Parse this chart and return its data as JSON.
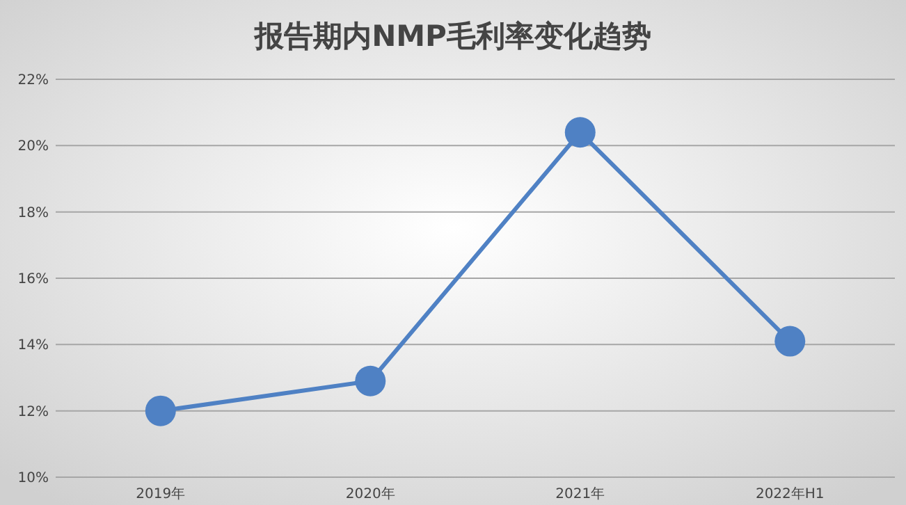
{
  "chart_data": {
    "type": "line",
    "title": "报告期内NMP毛利率变化趋势",
    "categories": [
      "2019年",
      "2020年",
      "2021年",
      "2022年H1"
    ],
    "series": [
      {
        "color": "#4f81c4",
        "values": [
          12.0,
          12.9,
          20.4,
          14.1
        ]
      }
    ],
    "ylim": [
      10,
      22
    ],
    "yticks": [
      {
        "value": 10,
        "label": "10%"
      },
      {
        "value": 12,
        "label": "12%"
      },
      {
        "value": 14,
        "label": "14%"
      },
      {
        "value": 16,
        "label": "16%"
      },
      {
        "value": 18,
        "label": "18%"
      },
      {
        "value": 20,
        "label": "20%"
      },
      {
        "value": 22,
        "label": "22%"
      }
    ],
    "grid": "y",
    "marker": "circle",
    "line_style": "solid"
  }
}
